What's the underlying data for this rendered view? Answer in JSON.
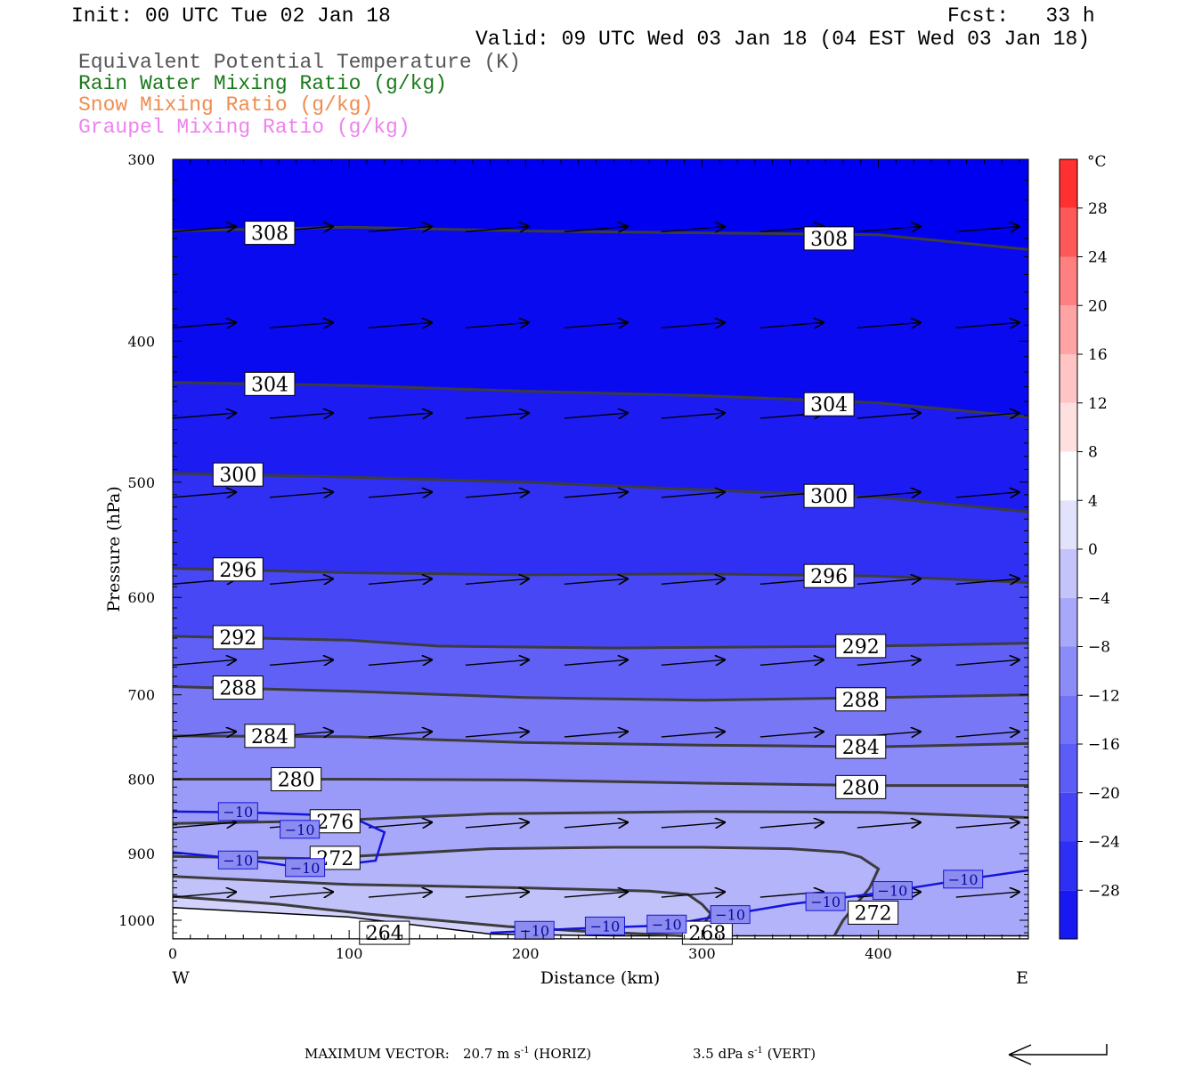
{
  "header": {
    "init": "Init: 00 UTC Tue 02 Jan 18",
    "fcst": "Fcst:   33 h",
    "valid": "Valid: 09 UTC Wed 03 Jan 18 (04 EST Wed 03 Jan 18)",
    "legend": [
      {
        "label": "Equivalent Potential Temperature (K)",
        "color": "#555555"
      },
      {
        "label": "Rain Water Mixing Ratio (g/kg)",
        "color": "#1a7a1a"
      },
      {
        "label": "Snow Mixing Ratio (g/kg)",
        "color": "#f08c50"
      },
      {
        "label": "Graupel Mixing Ratio (g/kg)",
        "color": "#ee82ee"
      }
    ]
  },
  "footer": {
    "max_vector_label": "MAXIMUM VECTOR:",
    "horiz_value": "20.7 m s",
    "horiz_unit": "(HORIZ)",
    "vert_value": "3.5 dPa s",
    "vert_unit": "(VERT)",
    "exponent": "-1"
  },
  "chart_data": {
    "type": "cross-section contour",
    "xlabel": "Distance (km)",
    "ylabel": "Pressure (hPa)",
    "x_range": [
      0,
      485
    ],
    "y_range": [
      300,
      1030
    ],
    "y_scale": "log-pressure (inverted)",
    "x_ticks": [
      0,
      100,
      200,
      300,
      400
    ],
    "y_ticks": [
      300,
      400,
      500,
      600,
      700,
      800,
      900,
      1000
    ],
    "x_end_labels": {
      "left": "W",
      "right": "E"
    },
    "colorbar": {
      "unit": "°C",
      "ticks": [
        28,
        24,
        20,
        16,
        12,
        8,
        4,
        0,
        -4,
        -8,
        -12,
        -16,
        -20,
        -24,
        -28
      ],
      "levels": [
        -32,
        -28,
        -24,
        -20,
        -16,
        -12,
        -8,
        -4,
        0,
        4,
        8,
        12,
        16,
        20,
        24,
        28,
        32
      ],
      "colors": [
        "#0000f0",
        "#1818f2",
        "#2e2ef4",
        "#4545f5",
        "#5c5cf6",
        "#7373f7",
        "#8c8cf8",
        "#a8a8fa",
        "#c4c4fb",
        "#e2e2fd",
        "#ffffff",
        "#ffe0e0",
        "#ffc4c4",
        "#ffa4a4",
        "#ff8080",
        "#ff5858",
        "#ff3030",
        "#ff0000"
      ]
    },
    "theta_e_contours": [
      {
        "level": 308,
        "points": [
          [
            0,
            336
          ],
          [
            100,
            334
          ],
          [
            200,
            336
          ],
          [
            300,
            337
          ],
          [
            400,
            338
          ],
          [
            485,
            346
          ]
        ],
        "label_positions": [
          [
            55,
            337
          ],
          [
            372,
            340
          ]
        ]
      },
      {
        "level": 304,
        "points": [
          [
            0,
            427
          ],
          [
            100,
            429
          ],
          [
            200,
            433
          ],
          [
            300,
            436
          ],
          [
            400,
            441
          ],
          [
            485,
            451
          ]
        ],
        "label_positions": [
          [
            55,
            428
          ],
          [
            372,
            442
          ]
        ]
      },
      {
        "level": 300,
        "points": [
          [
            0,
            493
          ],
          [
            100,
            496
          ],
          [
            200,
            500
          ],
          [
            300,
            506
          ],
          [
            400,
            512
          ],
          [
            485,
            524
          ]
        ],
        "label_positions": [
          [
            37,
            494
          ],
          [
            372,
            511
          ]
        ]
      },
      {
        "level": 296,
        "points": [
          [
            0,
            573
          ],
          [
            100,
            577
          ],
          [
            200,
            579
          ],
          [
            300,
            578
          ],
          [
            400,
            580
          ],
          [
            485,
            586
          ]
        ],
        "label_positions": [
          [
            37,
            574
          ],
          [
            372,
            580
          ]
        ]
      },
      {
        "level": 292,
        "points": [
          [
            0,
            638
          ],
          [
            100,
            642
          ],
          [
            150,
            648
          ],
          [
            250,
            650
          ],
          [
            400,
            648
          ],
          [
            485,
            645
          ]
        ],
        "label_positions": [
          [
            37,
            639
          ],
          [
            390,
            648
          ]
        ]
      },
      {
        "level": 288,
        "points": [
          [
            0,
            691
          ],
          [
            100,
            696
          ],
          [
            200,
            703
          ],
          [
            300,
            706
          ],
          [
            400,
            703
          ],
          [
            485,
            700
          ]
        ],
        "label_positions": [
          [
            37,
            692
          ],
          [
            390,
            705
          ]
        ]
      },
      {
        "level": 284,
        "points": [
          [
            0,
            747
          ],
          [
            100,
            748
          ],
          [
            200,
            755
          ],
          [
            300,
            758
          ],
          [
            400,
            760
          ],
          [
            485,
            756
          ]
        ],
        "label_positions": [
          [
            55,
            747
          ],
          [
            390,
            760
          ]
        ]
      },
      {
        "level": 280,
        "points": [
          [
            0,
            800
          ],
          [
            100,
            800
          ],
          [
            200,
            801
          ],
          [
            300,
            805
          ],
          [
            400,
            808
          ],
          [
            485,
            808
          ]
        ],
        "label_positions": [
          [
            70,
            800
          ],
          [
            390,
            810
          ]
        ]
      },
      {
        "level": 276,
        "points": [
          [
            0,
            858
          ],
          [
            80,
            855
          ],
          [
            180,
            845
          ],
          [
            300,
            842
          ],
          [
            400,
            843
          ],
          [
            485,
            850
          ]
        ],
        "label_positions": [
          [
            92,
            855
          ]
        ]
      },
      {
        "level": 272,
        "points": [
          [
            0,
            904
          ],
          [
            80,
            907
          ],
          [
            180,
            893
          ],
          [
            250,
            891
          ],
          [
            300,
            891
          ],
          [
            350,
            893
          ],
          [
            380,
            898
          ],
          [
            390,
            905
          ],
          [
            400,
            922
          ],
          [
            395,
            950
          ],
          [
            380,
            1000
          ],
          [
            375,
            1025
          ]
        ],
        "label_positions": [
          [
            92,
            906
          ],
          [
            397,
            988
          ]
        ]
      },
      {
        "level": 268,
        "points": [
          [
            0,
            933
          ],
          [
            100,
            945
          ],
          [
            200,
            950
          ],
          [
            270,
            955
          ],
          [
            292,
            960
          ],
          [
            300,
            975
          ],
          [
            305,
            990
          ],
          [
            300,
            1010
          ],
          [
            298,
            1025
          ]
        ],
        "label_positions": [
          [
            303,
            1020
          ]
        ]
      },
      {
        "level": 264,
        "points": [
          [
            0,
            963
          ],
          [
            60,
            975
          ],
          [
            110,
            990
          ],
          [
            150,
            1000
          ],
          [
            190,
            1010
          ],
          [
            230,
            1017
          ],
          [
            290,
            1025
          ]
        ],
        "label_positions": [
          [
            120,
            1020
          ]
        ]
      }
    ],
    "isotherm_minus10": {
      "level": -10,
      "segments": [
        [
          [
            0,
            842
          ],
          [
            40,
            843
          ],
          [
            100,
            848
          ],
          [
            120,
            870
          ],
          [
            115,
            910
          ],
          [
            95,
            916
          ],
          [
            80,
            917
          ],
          [
            65,
            917
          ],
          [
            40,
            908
          ],
          [
            0,
            898
          ]
        ],
        [
          [
            180,
            1020
          ],
          [
            230,
            1013
          ],
          [
            280,
            1008
          ],
          [
            300,
            998
          ],
          [
            350,
            975
          ],
          [
            400,
            958
          ],
          [
            450,
            937
          ],
          [
            485,
            924
          ]
        ]
      ],
      "label_positions": [
        [
          37,
          842
        ],
        [
          72,
          866
        ],
        [
          37,
          909
        ],
        [
          75,
          920
        ],
        [
          205,
          1016
        ],
        [
          245,
          1009
        ],
        [
          280,
          1006
        ],
        [
          316,
          991
        ],
        [
          370,
          971
        ],
        [
          408,
          954
        ],
        [
          448,
          937
        ]
      ]
    },
    "terrain": {
      "surface_pressure": [
        [
          0,
          980
        ],
        [
          100,
          995
        ],
        [
          180,
          1022
        ],
        [
          250,
          1025
        ],
        [
          300,
          1025
        ],
        [
          485,
          1025
        ]
      ]
    },
    "wind_vectors": {
      "rows": [
        335,
        390,
        450,
        510,
        585,
        665,
        745,
        860,
        960
      ],
      "columns": [
        0,
        55,
        111,
        166,
        222,
        277,
        333,
        388,
        444
      ]
    }
  }
}
